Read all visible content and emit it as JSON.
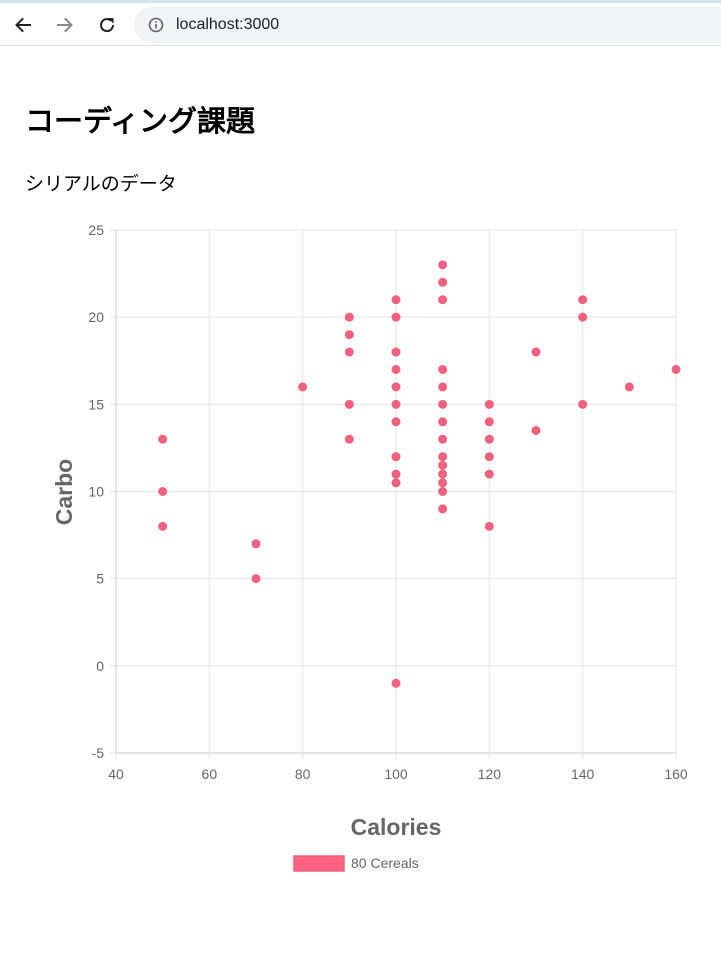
{
  "browser": {
    "url": "localhost:3000",
    "back_icon": "arrow-left-icon",
    "forward_icon": "arrow-right-icon",
    "reload_icon": "reload-icon",
    "info_icon": "info-icon"
  },
  "page": {
    "title": "コーディング課題",
    "subtitle": "シリアルのデータ"
  },
  "colors": {
    "point": "#f0607f",
    "legend_fill": "#ff6384",
    "grid": "#e5e5e5",
    "axis": "#c8c8c8",
    "text": "#666666"
  },
  "chart_data": {
    "type": "scatter",
    "xlabel": "Calories",
    "ylabel": "Carbo",
    "xlim": [
      40,
      160
    ],
    "ylim": [
      -5,
      25
    ],
    "xticks": [
      40,
      60,
      80,
      100,
      120,
      140,
      160
    ],
    "yticks": [
      -5,
      0,
      5,
      10,
      15,
      20,
      25
    ],
    "grid": true,
    "legend_position": "bottom",
    "series": [
      {
        "name": "80 Cereals",
        "points": [
          [
            50,
            13
          ],
          [
            50,
            10
          ],
          [
            50,
            8
          ],
          [
            70,
            7
          ],
          [
            70,
            5
          ],
          [
            80,
            16
          ],
          [
            90,
            20
          ],
          [
            90,
            19
          ],
          [
            90,
            18
          ],
          [
            90,
            15
          ],
          [
            90,
            13
          ],
          [
            100,
            21
          ],
          [
            100,
            20
          ],
          [
            100,
            18
          ],
          [
            100,
            17
          ],
          [
            100,
            16
          ],
          [
            100,
            15
          ],
          [
            100,
            14
          ],
          [
            100,
            12
          ],
          [
            100,
            11
          ],
          [
            100,
            10.5
          ],
          [
            100,
            -1
          ],
          [
            110,
            23
          ],
          [
            110,
            22
          ],
          [
            110,
            21
          ],
          [
            110,
            17
          ],
          [
            110,
            16
          ],
          [
            110,
            15
          ],
          [
            110,
            14
          ],
          [
            110,
            13
          ],
          [
            110,
            12
          ],
          [
            110,
            11.5
          ],
          [
            110,
            11
          ],
          [
            110,
            10.5
          ],
          [
            110,
            10
          ],
          [
            110,
            9
          ],
          [
            120,
            15
          ],
          [
            120,
            14
          ],
          [
            120,
            13
          ],
          [
            120,
            12
          ],
          [
            120,
            11
          ],
          [
            120,
            8
          ],
          [
            130,
            18
          ],
          [
            130,
            13.5
          ],
          [
            140,
            21
          ],
          [
            140,
            20
          ],
          [
            140,
            15
          ],
          [
            150,
            16
          ],
          [
            160,
            17
          ]
        ]
      }
    ]
  }
}
